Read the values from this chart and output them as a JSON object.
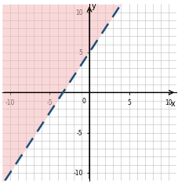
{
  "slope": 1.5,
  "intercept": 5,
  "xlim": [
    -11,
    11
  ],
  "ylim": [
    -11,
    11
  ],
  "axis_xlim": [
    -10,
    10
  ],
  "axis_ylim": [
    -10,
    10
  ],
  "xticks": [
    -10,
    -5,
    5,
    10
  ],
  "yticks": [
    -10,
    -5,
    5,
    10
  ],
  "x_label_ticks": [
    -10,
    -5,
    0,
    5,
    10
  ],
  "y_label_ticks": [
    -10,
    -5,
    0,
    5,
    10
  ],
  "line_color": "#1f4e79",
  "line_width": 1.8,
  "shade_color": "#f4b8b8",
  "shade_alpha": 0.55,
  "grid_color": "#bbbbbb",
  "xlabel": "x",
  "ylabel": "y",
  "figsize": [
    2.28,
    2.34
  ],
  "dpi": 100
}
